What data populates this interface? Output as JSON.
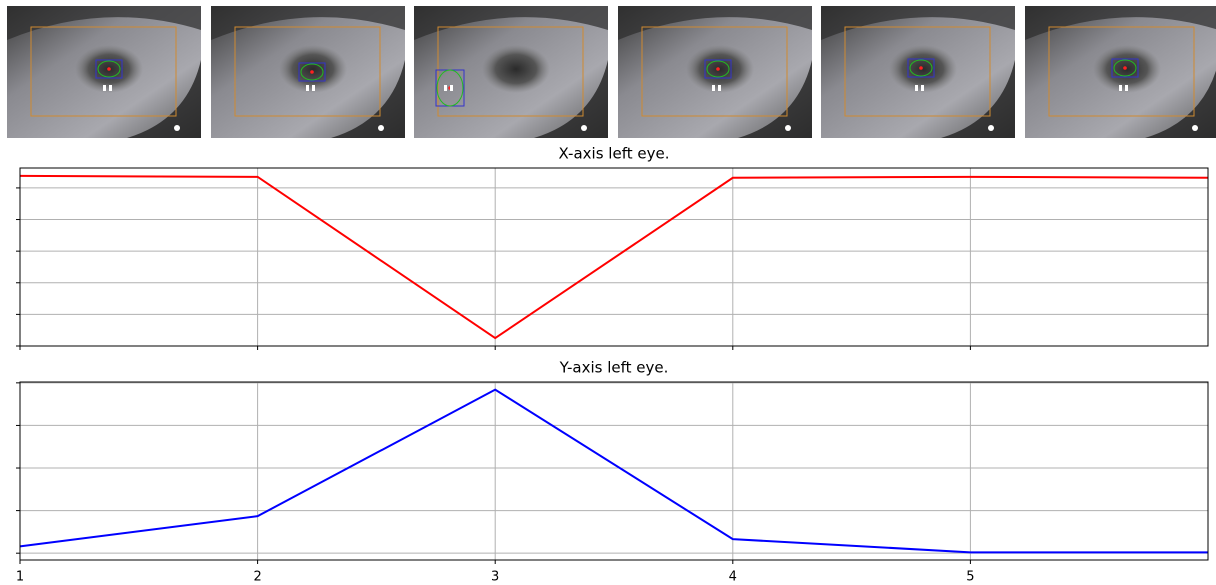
{
  "chart_data": [
    {
      "type": "line",
      "title": "X-axis left eye.",
      "x": [
        1,
        2,
        3,
        4,
        5,
        6
      ],
      "values": [
        5.38,
        5.35,
        0.25,
        5.32,
        5.35,
        5.32
      ],
      "color": "#ff0000",
      "xlim": [
        1,
        6
      ],
      "xticks": [
        1,
        2,
        3,
        4,
        5
      ],
      "ylim": [
        0,
        5.63
      ],
      "yticks": [
        0,
        1,
        2,
        3,
        4,
        5
      ],
      "grid": true,
      "show_xtick_labels": false
    },
    {
      "type": "line",
      "title": "Y-axis left eye.",
      "x": [
        1,
        2,
        3,
        4,
        5,
        6
      ],
      "values": [
        0.16,
        0.87,
        3.84,
        0.33,
        0.02,
        0.02
      ],
      "color": "#0000ff",
      "xlim": [
        1,
        6
      ],
      "xticks": [
        1,
        2,
        3,
        4,
        5
      ],
      "ylim": [
        -0.16,
        4.02
      ],
      "yticks": [
        0,
        1,
        2,
        3,
        4
      ],
      "grid": true,
      "show_xtick_labels": true
    }
  ]
}
